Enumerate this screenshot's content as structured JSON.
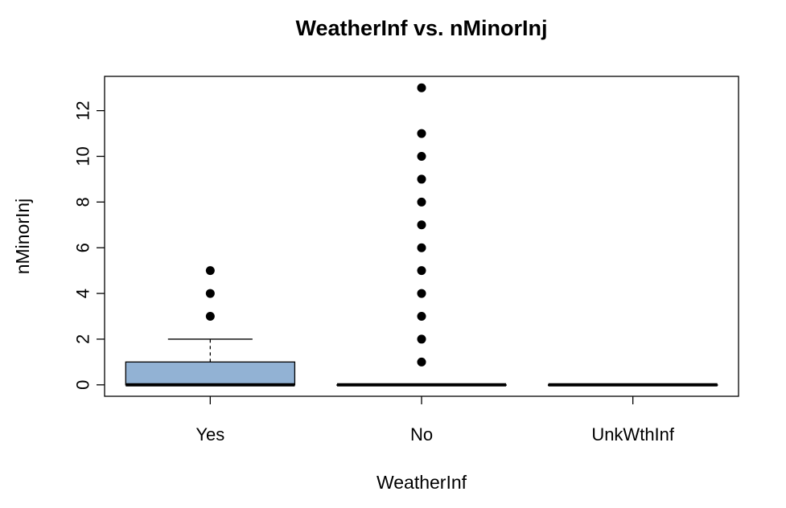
{
  "chart_data": {
    "type": "boxplot",
    "title": "WeatherInf  vs. nMinorInj",
    "xlabel": "WeatherInf",
    "ylabel": "nMinorInj",
    "categories": [
      "Yes",
      "No",
      "UnkWthInf"
    ],
    "ylim": [
      -0.5,
      13.5
    ],
    "yticks": [
      0,
      2,
      4,
      6,
      8,
      10,
      12
    ],
    "box_color": "#92B2D4",
    "grid": false,
    "boxes": [
      {
        "category": "Yes",
        "q1": 0,
        "median": 0,
        "q3": 1,
        "whisker_low": 0,
        "whisker_high": 2,
        "outliers": [
          3,
          4,
          5
        ]
      },
      {
        "category": "No",
        "q1": 0,
        "median": 0,
        "q3": 0,
        "whisker_low": 0,
        "whisker_high": 0,
        "outliers": [
          1,
          2,
          3,
          4,
          5,
          6,
          7,
          8,
          9,
          10,
          11,
          13
        ]
      },
      {
        "category": "UnkWthInf",
        "q1": 0,
        "median": 0,
        "q3": 0,
        "whisker_low": 0,
        "whisker_high": 0,
        "outliers": []
      }
    ]
  }
}
